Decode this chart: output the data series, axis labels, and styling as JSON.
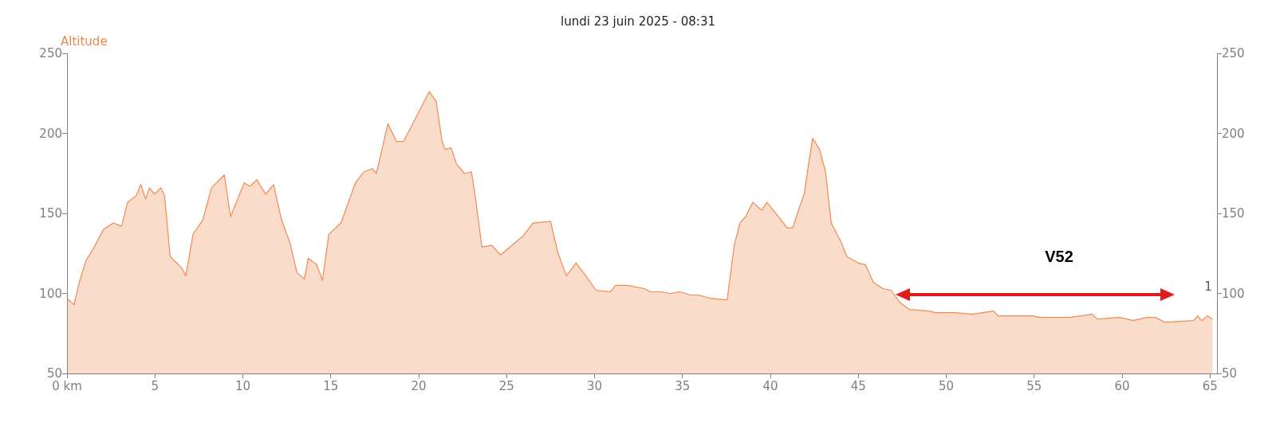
{
  "chart_data": {
    "type": "area",
    "title": "lundi 23 juin 2025 - 08:31",
    "ylabel": "Altitude",
    "xlim": [
      0,
      65.4
    ],
    "xticks": [
      {
        "value": 0,
        "label": "0 km"
      },
      5,
      10,
      15,
      20,
      25,
      30,
      35,
      40,
      45,
      50,
      55,
      60,
      65
    ],
    "ylim": [
      50,
      250
    ],
    "yticks": [
      50,
      100,
      150,
      200,
      250
    ],
    "y2lim": [
      50,
      250
    ],
    "y2ticks": [
      50,
      100,
      150,
      200,
      250
    ],
    "grid": false,
    "marker": "none",
    "line_style": "solid",
    "series": [
      {
        "color": "#ee8a52",
        "x": [
          0,
          0.4,
          0.7,
          1.1,
          1.5,
          2.07,
          2.64,
          3.1,
          3.45,
          3.93,
          4.2,
          4.47,
          4.69,
          4.98,
          5.34,
          5.55,
          5.87,
          6.52,
          6.76,
          7.17,
          7.73,
          8.22,
          8.95,
          9.3,
          10.08,
          10.4,
          10.8,
          11.3,
          11.75,
          12.2,
          12.67,
          13.08,
          13.5,
          13.72,
          14.2,
          14.53,
          14.89,
          15.58,
          16.4,
          16.88,
          17.36,
          17.6,
          18.25,
          18.74,
          19.14,
          20.6,
          21.0,
          21.33,
          21.5,
          21.85,
          22.14,
          22.6,
          23.0,
          23.2,
          23.6,
          24.17,
          24.65,
          25.3,
          25.95,
          26.5,
          27.5,
          27.9,
          28.4,
          28.95,
          29.44,
          30.08,
          30.9,
          31.2,
          31.87,
          32.84,
          33.17,
          33.8,
          34.3,
          34.87,
          35.44,
          35.9,
          36.57,
          37.54,
          37.95,
          38.27,
          38.6,
          39.0,
          39.5,
          39.8,
          40.46,
          40.95,
          41.27,
          41.6,
          41.92,
          42.4,
          42.8,
          43.14,
          43.46,
          44.03,
          44.35,
          45.0,
          45.4,
          45.86,
          46.4,
          46.87,
          47.4,
          47.9,
          49.0,
          49.4,
          50.5,
          51.46,
          52.7,
          52.94,
          54.9,
          55.35,
          57.06,
          58.3,
          58.6,
          59.86,
          60.64,
          61.4,
          61.9,
          62.43,
          64.07,
          64.3,
          64.53,
          64.85,
          65.15
        ],
        "values": [
          97,
          93,
          107,
          121,
          128,
          140,
          144,
          142,
          157,
          161,
          168,
          159,
          166,
          162,
          166,
          161,
          123,
          116,
          111,
          137,
          146,
          166,
          174,
          148,
          169,
          167,
          171,
          162,
          168,
          146,
          132,
          113,
          109,
          122,
          118,
          108,
          137,
          144,
          169,
          176,
          178,
          175,
          206,
          195,
          195,
          226,
          220,
          195,
          190,
          191,
          181,
          175,
          176,
          162,
          129,
          130,
          124,
          130,
          136,
          144,
          145,
          126,
          111,
          119,
          112,
          102,
          101,
          105,
          105,
          103,
          101,
          101,
          100,
          101,
          99,
          99,
          97,
          96,
          130,
          144,
          148,
          157,
          152,
          157,
          148,
          141,
          141,
          152,
          162,
          197,
          190,
          176,
          144,
          132,
          123,
          119,
          118,
          107,
          103,
          102,
          94,
          90,
          89,
          88,
          88,
          87,
          89,
          86,
          86,
          85,
          85,
          87,
          84,
          85,
          83,
          85,
          85,
          82,
          83,
          86,
          83,
          86,
          84
        ]
      }
    ],
    "annotations": [
      "V52",
      "1"
    ]
  }
}
